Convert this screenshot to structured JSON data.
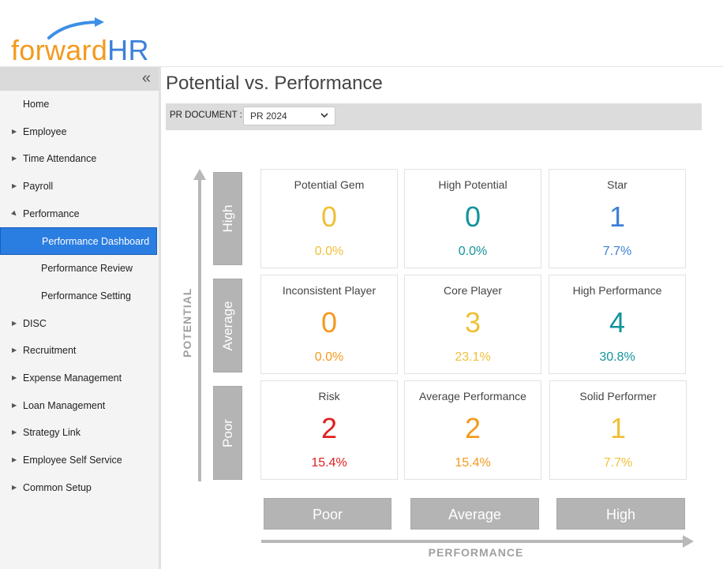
{
  "logo": {
    "text_forward": "forward",
    "text_hr": "HR"
  },
  "sidebar": {
    "collapse_icon": "«",
    "items": [
      {
        "label": "Home"
      },
      {
        "label": "Employee"
      },
      {
        "label": "Time Attendance"
      },
      {
        "label": "Payroll"
      },
      {
        "label": "Performance"
      },
      {
        "label": "Performance Dashboard"
      },
      {
        "label": "Performance Review"
      },
      {
        "label": "Performance Setting"
      },
      {
        "label": "DISC"
      },
      {
        "label": "Recruitment"
      },
      {
        "label": "Expense Management"
      },
      {
        "label": "Loan Management"
      },
      {
        "label": "Strategy Link"
      },
      {
        "label": "Employee Self Service"
      },
      {
        "label": "Common Setup"
      }
    ]
  },
  "page": {
    "title": "Potential vs. Performance"
  },
  "filter": {
    "label": "PR DOCUMENT :",
    "selected": "PR 2024"
  },
  "axes": {
    "y_label": "POTENTIAL",
    "x_label": "PERFORMANCE",
    "rows": [
      "High",
      "Average",
      "Poor"
    ],
    "cols": [
      "Poor",
      "Average",
      "High"
    ]
  },
  "grid": [
    {
      "title": "Potential Gem",
      "count": "0",
      "pct": "0.0%",
      "color": "#f0c03a"
    },
    {
      "title": "High Potential",
      "count": "0",
      "pct": "0.0%",
      "color": "#13939c"
    },
    {
      "title": "Star",
      "count": "1",
      "pct": "7.7%",
      "color": "#3d80d8"
    },
    {
      "title": "Inconsistent Player",
      "count": "0",
      "pct": "0.0%",
      "color": "#f39a1e"
    },
    {
      "title": "Core Player",
      "count": "3",
      "pct": "23.1%",
      "color": "#f0c03a"
    },
    {
      "title": "High Performance",
      "count": "4",
      "pct": "30.8%",
      "color": "#13939c"
    },
    {
      "title": "Risk",
      "count": "2",
      "pct": "15.4%",
      "color": "#e02020"
    },
    {
      "title": "Average Performance",
      "count": "2",
      "pct": "15.4%",
      "color": "#f39a1e"
    },
    {
      "title": "Solid Performer",
      "count": "1",
      "pct": "7.7%",
      "color": "#f0c03a"
    }
  ]
}
